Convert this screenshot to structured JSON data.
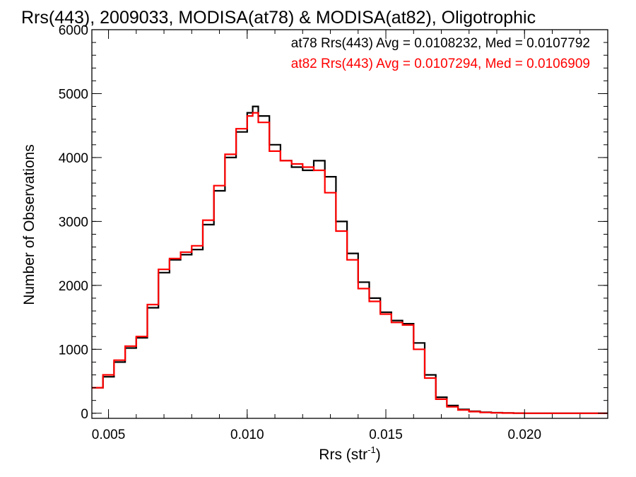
{
  "chart_data": {
    "type": "line",
    "step": true,
    "title": "Rrs(443), 2009033, MODISA(at78) & MODISA(at82), Oligotrophic",
    "xlabel": "Rrs (str",
    "xlabel_superscript": "-1",
    "xlabel_suffix": ")",
    "ylabel": "Number of Observations",
    "xlim": [
      0.0044,
      0.023
    ],
    "ylim": [
      -80,
      6000
    ],
    "x_ticks": [
      0.005,
      0.01,
      0.015,
      0.02
    ],
    "x_tick_labels": [
      "0.005",
      "0.010",
      "0.015",
      "0.020"
    ],
    "y_ticks": [
      0,
      1000,
      2000,
      3000,
      4000,
      5000,
      6000
    ],
    "y_tick_labels": [
      "0",
      "1000",
      "2000",
      "3000",
      "4000",
      "5000",
      "6000"
    ],
    "x_minor_step": 0.001,
    "y_minor_step": 200,
    "grid": false,
    "annotations": [
      {
        "text": "at78 Rrs(443) Avg = 0.0108232, Med = 0.0107792",
        "color": "#000000"
      },
      {
        "text": "at82 Rrs(443) Avg = 0.0107294, Med = 0.0106909",
        "color": "#ff0000"
      }
    ],
    "series": [
      {
        "color": "#000000",
        "x": [
          0.0044,
          0.0048,
          0.0052,
          0.0056,
          0.006,
          0.0064,
          0.0068,
          0.0072,
          0.0076,
          0.008,
          0.0084,
          0.0088,
          0.0092,
          0.0096,
          0.01,
          0.0102,
          0.0104,
          0.0108,
          0.0112,
          0.0116,
          0.012,
          0.0124,
          0.0128,
          0.0132,
          0.0136,
          0.014,
          0.0144,
          0.0148,
          0.0152,
          0.0156,
          0.016,
          0.0164,
          0.0168,
          0.0172,
          0.0176,
          0.018,
          0.0184,
          0.0188,
          0.0192,
          0.0196,
          0.02,
          0.021,
          0.022,
          0.023
        ],
        "y": [
          400,
          570,
          800,
          1020,
          1180,
          1650,
          2200,
          2400,
          2480,
          2560,
          2950,
          3480,
          4000,
          4400,
          4700,
          4800,
          4650,
          4200,
          3950,
          3850,
          3800,
          3950,
          3700,
          3000,
          2500,
          2050,
          1800,
          1580,
          1450,
          1400,
          1100,
          600,
          250,
          120,
          60,
          30,
          15,
          8,
          4,
          2,
          0,
          0,
          0,
          0
        ]
      },
      {
        "color": "#ff0000",
        "x": [
          0.0044,
          0.0048,
          0.0052,
          0.0056,
          0.006,
          0.0064,
          0.0068,
          0.0072,
          0.0076,
          0.008,
          0.0084,
          0.0088,
          0.0092,
          0.0096,
          0.01,
          0.0102,
          0.0104,
          0.0108,
          0.0112,
          0.0116,
          0.012,
          0.0124,
          0.0128,
          0.0132,
          0.0136,
          0.014,
          0.0144,
          0.0148,
          0.0152,
          0.0156,
          0.016,
          0.0164,
          0.0168,
          0.0172,
          0.0176,
          0.018,
          0.0184,
          0.0188,
          0.0192,
          0.0196,
          0.02,
          0.021,
          0.022,
          0.023
        ],
        "y": [
          400,
          600,
          830,
          1050,
          1200,
          1700,
          2250,
          2420,
          2520,
          2620,
          3020,
          3560,
          4050,
          4450,
          4650,
          4700,
          4550,
          4100,
          3950,
          3900,
          3850,
          3800,
          3450,
          2850,
          2400,
          1950,
          1750,
          1550,
          1420,
          1380,
          1000,
          550,
          220,
          100,
          50,
          25,
          12,
          6,
          3,
          1,
          0,
          0,
          0,
          0
        ]
      }
    ]
  }
}
